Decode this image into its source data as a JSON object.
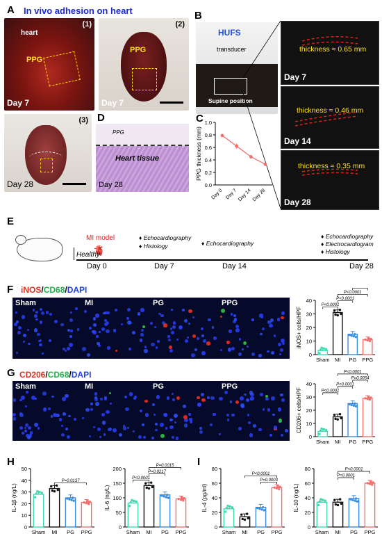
{
  "panels": {
    "A": {
      "letter": "A",
      "title": "In vivo adhesion on heart",
      "sub1": "(1)",
      "sub2": "(2)",
      "sub3": "(3)",
      "heart": "heart",
      "ppg": "PPG",
      "day7a": "Day 7",
      "day7b": "Day 7",
      "day28": "Day 28"
    },
    "B": {
      "letter": "B",
      "hufs": "HUFS",
      "transducer": "transducer",
      "supine": "Supine position",
      "us": [
        {
          "day": "Day 7",
          "thk": "thickness ≈ 0.65 mm"
        },
        {
          "day": "Day 14",
          "thk": "thickness ≈ 0.46 mm"
        },
        {
          "day": "Day 28",
          "thk": "thickness ≈ 0.35 mm"
        }
      ]
    },
    "C": {
      "letter": "C"
    },
    "D": {
      "letter": "D",
      "ppg": "PPG",
      "tissue": "Heart tissue",
      "day": "Day 28"
    },
    "E": {
      "letter": "E",
      "mi_model": "MI model",
      "healthy": "Healthy",
      "days": [
        "Day 0",
        "Day 7",
        "Day 14",
        "Day 28"
      ],
      "d7": [
        "Echocardiography",
        "Histology"
      ],
      "d14": [
        "Echocardiography"
      ],
      "d28": [
        "Echocardiography",
        "Electrocardiogram",
        "Histology"
      ]
    },
    "F": {
      "letter": "F",
      "stain1": "iNOS",
      "stain2": "CD68",
      "stain3": "DAPI",
      "sep": "/",
      "groups": [
        "Sham",
        "MI",
        "PG",
        "PPG"
      ]
    },
    "G": {
      "letter": "G",
      "stain1": "CD206",
      "stain2": "CD68",
      "stain3": "DAPI",
      "sep": "/",
      "groups": [
        "Sham",
        "MI",
        "PG",
        "PPG"
      ]
    },
    "H": {
      "letter": "H"
    },
    "I": {
      "letter": "I"
    }
  },
  "colors": {
    "sham": "#3fd9b0",
    "mi": "#111111",
    "pg": "#3a8de0",
    "ppg": "#f07070",
    "line": "#f07070"
  },
  "chart_data": [
    {
      "id": "C",
      "type": "line",
      "xlabel": "",
      "ylabel": "PPG thickness (mm)",
      "categories": [
        "Day 0",
        "Day 7",
        "Day 14",
        "Day 28"
      ],
      "values": [
        0.79,
        0.62,
        0.45,
        0.33
      ],
      "errors": [
        0.02,
        0.04,
        0.03,
        0.02
      ],
      "ylim": [
        0,
        1.0
      ],
      "yticks": [
        0.0,
        0.2,
        0.4,
        0.6,
        0.8,
        1.0
      ]
    },
    {
      "id": "F",
      "type": "bar",
      "ylabel": "iNOS+ cells/HPF",
      "categories": [
        "Sham",
        "MI",
        "PG",
        "PPG"
      ],
      "values": [
        3,
        31,
        15,
        11
      ],
      "ylim": [
        0,
        40
      ],
      "yticks": [
        0,
        10,
        20,
        30,
        40
      ],
      "pvalues": [
        {
          "from": "Sham",
          "to": "MI",
          "text": "P<0.0001"
        },
        {
          "from": "MI",
          "to": "PG",
          "text": "P<0.0001"
        },
        {
          "from": "MI",
          "to": "PPG",
          "text": "P<0.0001"
        },
        {
          "from": "PG",
          "to": "PPG",
          "text": "P=0.0009"
        }
      ]
    },
    {
      "id": "G",
      "type": "bar",
      "ylabel": "CD206+ cells/HPF",
      "categories": [
        "Sham",
        "MI",
        "PG",
        "PPG"
      ],
      "values": [
        4,
        15,
        25,
        29
      ],
      "ylim": [
        0,
        40
      ],
      "yticks": [
        0,
        10,
        20,
        30,
        40
      ],
      "pvalues": [
        {
          "from": "Sham",
          "to": "MI",
          "text": "P<0.0001"
        },
        {
          "from": "MI",
          "to": "PG",
          "text": "P<0.0001"
        },
        {
          "from": "PG",
          "to": "PPG",
          "text": "P=0.0054"
        },
        {
          "from": "MI",
          "to": "PPG",
          "text": "P<0.0001"
        }
      ]
    },
    {
      "id": "H1",
      "type": "bar",
      "ylabel": "IL-1β (ng/L)",
      "categories": [
        "Sham",
        "MI",
        "PG",
        "PPG"
      ],
      "values": [
        28,
        33,
        25,
        21
      ],
      "ylim": [
        0,
        50
      ],
      "yticks": [
        0,
        10,
        20,
        30,
        40,
        50
      ],
      "pvalues": [
        {
          "from": "MI",
          "to": "PPG",
          "text": "P=0.0137"
        }
      ]
    },
    {
      "id": "H2",
      "type": "bar",
      "ylabel": "IL-6 (ng/L)",
      "categories": [
        "Sham",
        "MI",
        "PG",
        "PPG"
      ],
      "values": [
        82,
        142,
        110,
        96
      ],
      "ylim": [
        0,
        200
      ],
      "yticks": [
        0,
        50,
        100,
        150,
        200
      ],
      "pvalues": [
        {
          "from": "Sham",
          "to": "MI",
          "text": "P<0.0001"
        },
        {
          "from": "MI",
          "to": "PG",
          "text": "P=0.0217"
        },
        {
          "from": "MI",
          "to": "PPG",
          "text": "P=0.0015"
        }
      ]
    },
    {
      "id": "I1",
      "type": "bar",
      "ylabel": "IL-4 (pg/ml)",
      "categories": [
        "Sham",
        "MI",
        "PG",
        "PPG"
      ],
      "values": [
        25,
        14,
        27,
        54
      ],
      "ylim": [
        0,
        80
      ],
      "yticks": [
        0,
        20,
        40,
        60,
        80
      ],
      "pvalues": [
        {
          "from": "PG",
          "to": "PPG",
          "text": "P=0.0003"
        },
        {
          "from": "MI",
          "to": "PPG",
          "text": "P<0.0001"
        }
      ]
    },
    {
      "id": "I2",
      "type": "bar",
      "ylabel": "IL-10 (ng/L)",
      "categories": [
        "Sham",
        "MI",
        "PG",
        "PPG"
      ],
      "values": [
        34,
        34,
        39,
        60
      ],
      "ylim": [
        0,
        80
      ],
      "yticks": [
        0,
        20,
        40,
        60,
        80
      ],
      "pvalues": [
        {
          "from": "MI",
          "to": "PG",
          "text": "P=0.0001"
        },
        {
          "from": "MI",
          "to": "PPG",
          "text": "P<0.0001"
        }
      ]
    }
  ]
}
